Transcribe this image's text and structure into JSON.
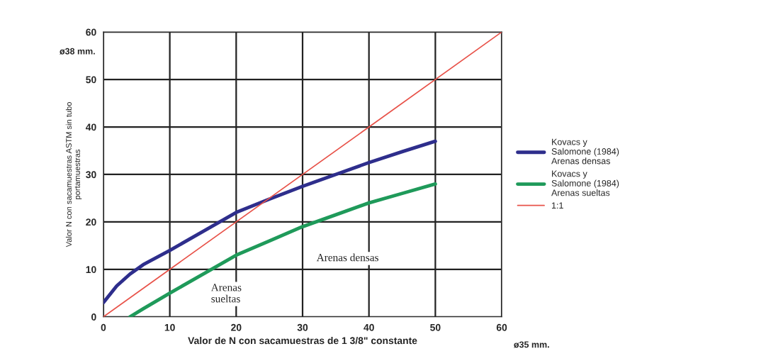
{
  "chart_data": {
    "type": "line",
    "xlabel": "Valor de N con sacamuestras de 1 3/8\" constante",
    "ylabel": "Valor N con sacamuestras ASTM sin tubo\nportamuestras",
    "xlim": [
      0,
      60
    ],
    "ylim": [
      0,
      60
    ],
    "xticks": [
      0,
      10,
      20,
      30,
      40,
      50,
      60
    ],
    "yticks": [
      0,
      10,
      20,
      30,
      40,
      50,
      60
    ],
    "grid": true,
    "legend": "right",
    "marker": "none",
    "line_style": "solid",
    "series": [
      {
        "name": "Kovacs y\nSalomone (1984)\nArenas densas",
        "color": "#2e2e8c",
        "x": [
          0,
          2,
          4,
          6,
          10,
          15,
          20,
          25,
          30,
          35,
          40,
          45,
          50
        ],
        "values": [
          3,
          6.5,
          9,
          11,
          14,
          18,
          22,
          24.8,
          27.5,
          30,
          32.5,
          34.8,
          37
        ]
      },
      {
        "name": "Kovacs y\nSalomone (1984)\nArenas sueltas",
        "color": "#1f9a5a",
        "x": [
          4,
          6,
          10,
          15,
          20,
          25,
          30,
          35,
          40,
          45,
          50
        ],
        "values": [
          0,
          1.7,
          5,
          9,
          13,
          16,
          19,
          21.5,
          24,
          26,
          28
        ]
      },
      {
        "name": "1:1",
        "color": "#e8534a",
        "x": [
          0,
          60
        ],
        "values": [
          0,
          60
        ]
      }
    ],
    "annotations": [
      "ø38 mm.",
      "ø35 mm.",
      "Arenas densas",
      "Arenas\nsueltas"
    ]
  }
}
